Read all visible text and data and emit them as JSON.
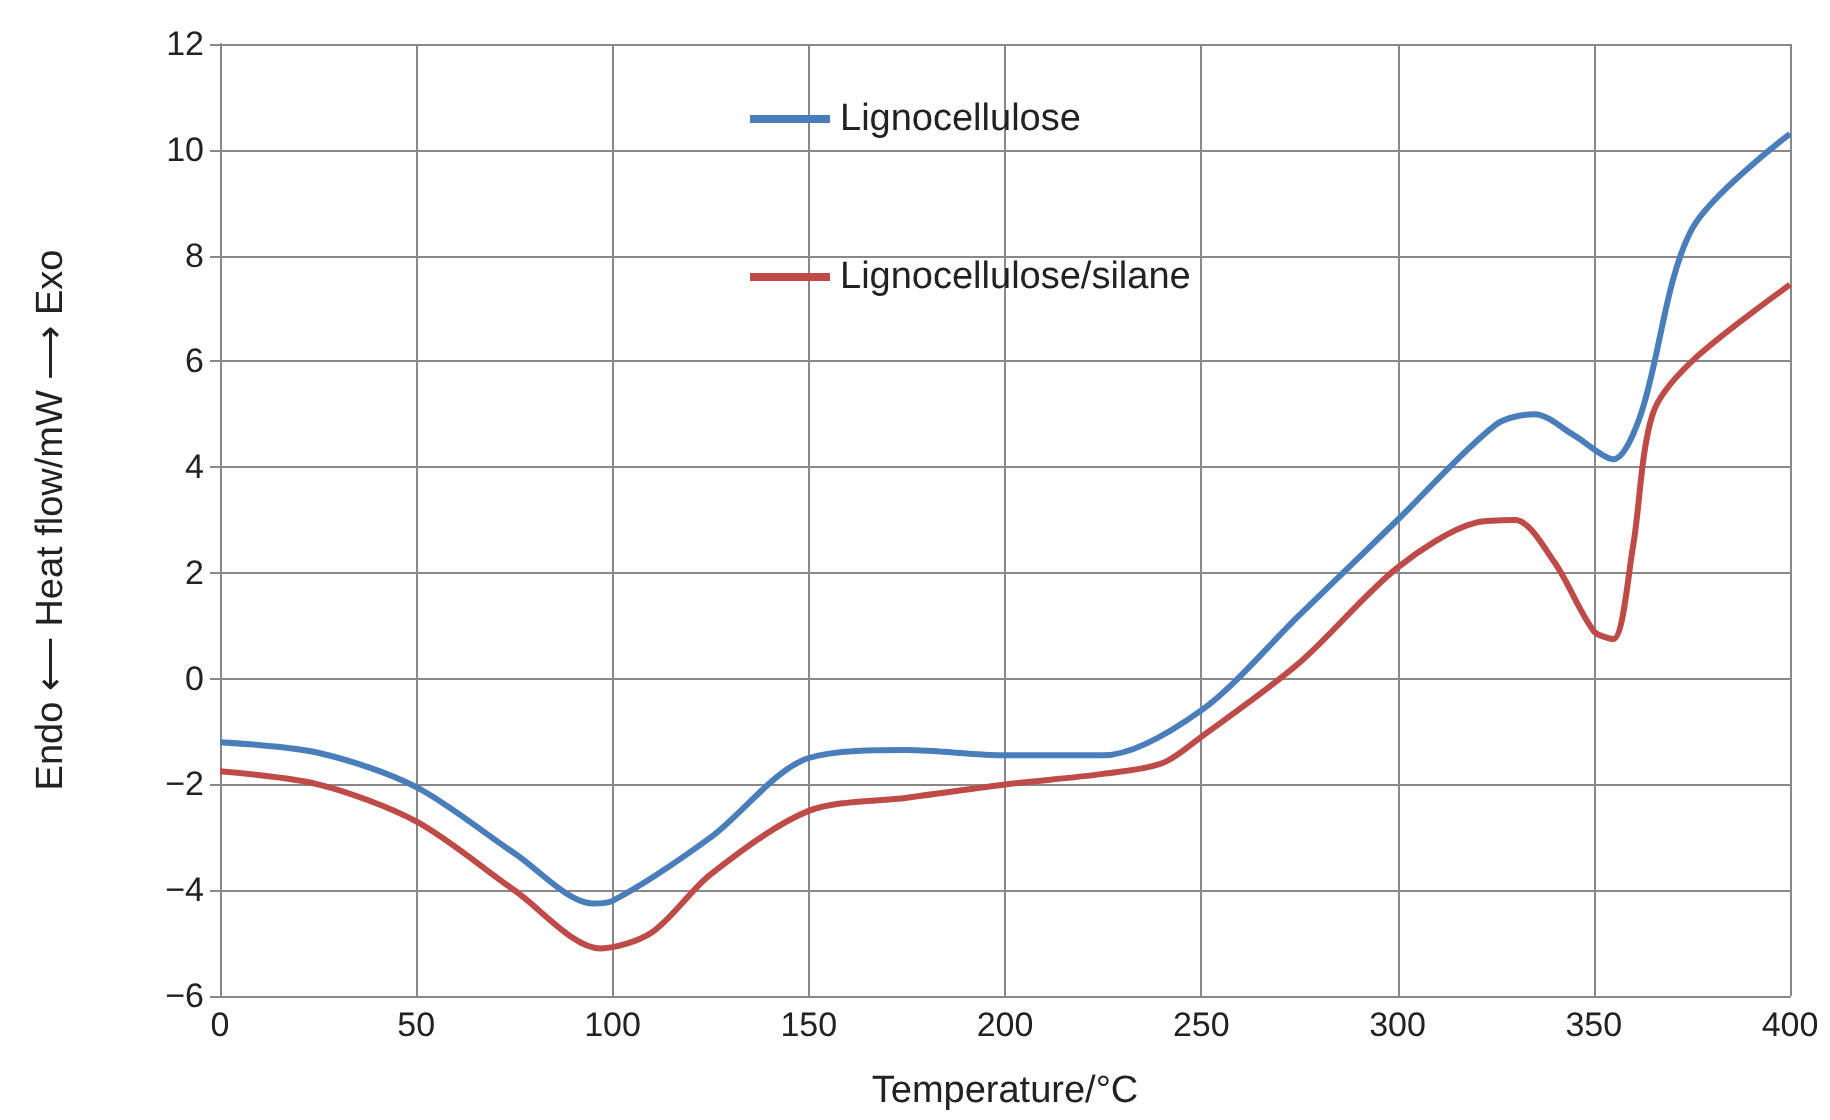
{
  "chart_data": {
    "type": "line",
    "xlabel": "Temperature/°C",
    "ylabel": "Endo ⟵ Heat flow/mW ⟶ Exo",
    "xlim": [
      0,
      400
    ],
    "xticks": [
      0,
      50,
      100,
      150,
      200,
      250,
      300,
      350,
      400
    ],
    "ylim": [
      -6,
      12
    ],
    "yticks": [
      -6,
      -4,
      -2,
      0,
      2,
      4,
      6,
      8,
      10,
      12
    ],
    "grid": true,
    "legend": "top",
    "marker": "none",
    "line_style": "solid",
    "series": [
      {
        "name": "Lignocellulose",
        "color": "#4a7ebb",
        "x": [
          0,
          25,
          50,
          75,
          95,
          100,
          125,
          150,
          175,
          200,
          225,
          250,
          275,
          300,
          325,
          335,
          345,
          355,
          362,
          375,
          400
        ],
        "values": [
          -1.2,
          -1.4,
          -2.05,
          -3.3,
          -4.25,
          -4.2,
          -3.0,
          -1.5,
          -1.35,
          -1.45,
          -1.45,
          -0.6,
          1.2,
          3.0,
          4.8,
          5.0,
          4.6,
          4.15,
          5.0,
          8.5,
          10.3
        ]
      },
      {
        "name": "Lignocellulose/silane",
        "color": "#be4b48",
        "x": [
          0,
          25,
          50,
          75,
          97,
          110,
          125,
          150,
          175,
          200,
          225,
          240,
          250,
          275,
          300,
          320,
          330,
          340,
          350,
          355,
          360,
          365,
          375,
          400
        ],
        "values": [
          -1.75,
          -2.0,
          -2.7,
          -4.0,
          -5.1,
          -4.8,
          -3.7,
          -2.5,
          -2.25,
          -2.0,
          -1.8,
          -1.6,
          -1.1,
          0.3,
          2.1,
          2.95,
          3.0,
          2.2,
          0.9,
          0.75,
          2.5,
          5.0,
          6.0,
          7.45
        ]
      }
    ]
  }
}
